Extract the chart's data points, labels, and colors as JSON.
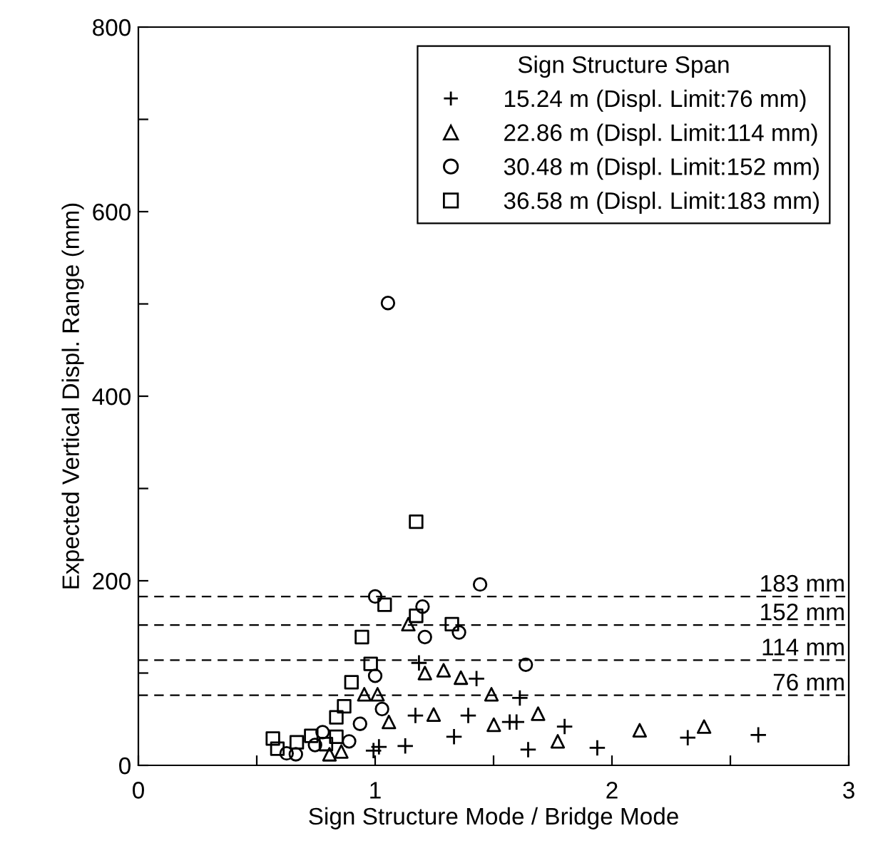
{
  "chart_data": {
    "type": "scatter",
    "xlabel": "Sign Structure Mode / Bridge Mode",
    "ylabel": "Expected Vertical Displ. Range (mm)",
    "legend_title": "Sign Structure Span",
    "legend": "top right",
    "grid": false,
    "xlim": [
      0,
      3
    ],
    "xticks": [
      0,
      {
        "value": 0.5,
        "label": null
      },
      1,
      {
        "value": 1.5,
        "label": null
      },
      2,
      {
        "value": 2.5,
        "label": null
      },
      3
    ],
    "ylim": [
      0,
      800
    ],
    "yticks": [
      0,
      {
        "value": 100,
        "label": null
      },
      200,
      {
        "value": 300,
        "label": null
      },
      400,
      {
        "value": 500,
        "label": null
      },
      600,
      {
        "value": 700,
        "label": null
      },
      800
    ],
    "series": [
      {
        "name": "15.24 m (Displ. Limit:76 mm)",
        "color": "#000000",
        "marker": "cross",
        "x": [
          1.185,
          1.428,
          1.17,
          1.393,
          1.333,
          1.127,
          1.016,
          0.993,
          1.611,
          1.568,
          1.597,
          1.8,
          1.646,
          1.938,
          2.32,
          2.618
        ],
        "values": [
          111,
          94,
          54,
          54,
          31,
          21,
          20,
          16,
          73,
          47,
          47,
          42,
          17,
          19,
          30,
          33
        ]
      },
      {
        "name": "22.86 m (Displ. Limit:114 mm)",
        "color": "#000000",
        "marker": "triangle",
        "x": [
          1.14,
          1.21,
          1.289,
          1.362,
          0.954,
          1.01,
          1.058,
          1.247,
          0.807,
          0.857,
          1.491,
          1.501,
          1.688,
          1.771,
          2.117,
          2.389
        ],
        "values": [
          153,
          100,
          103,
          95,
          77,
          77,
          47,
          55,
          12,
          15,
          77,
          44,
          56,
          26,
          38,
          42
        ]
      },
      {
        "name": "30.48 m (Displ. Limit:152 mm)",
        "color": "#000000",
        "marker": "circle",
        "x": [
          1.054,
          1.0,
          1.2,
          1.21,
          1.354,
          1.443,
          1.0,
          1.029,
          0.936,
          0.778,
          0.89,
          0.746,
          0.626,
          0.665,
          1.636
        ],
        "values": [
          501,
          183,
          172,
          139,
          144,
          196,
          97,
          61,
          45,
          36,
          26,
          22,
          13,
          12,
          109
        ]
      },
      {
        "name": "36.58 m (Displ. Limit:183 mm)",
        "color": "#000000",
        "marker": "square",
        "x": [
          1.173,
          1.04,
          0.944,
          0.981,
          0.9,
          0.869,
          0.836,
          1.324,
          1.173,
          0.568,
          0.587,
          0.669,
          0.73,
          0.836,
          0.792
        ],
        "values": [
          264,
          174,
          139,
          110,
          90,
          64,
          52,
          153,
          162,
          29,
          18,
          25,
          32,
          31,
          23
        ]
      }
    ],
    "ref_lines": [
      {
        "axis": "y",
        "value": 183,
        "label": "183 mm",
        "color": "#000000",
        "line_style": "dashed"
      },
      {
        "axis": "y",
        "value": 152,
        "label": "152 mm",
        "color": "#000000",
        "line_style": "dashed"
      },
      {
        "axis": "y",
        "value": 114,
        "label": "114 mm",
        "color": "#000000",
        "line_style": "dashed"
      },
      {
        "axis": "y",
        "value": 76,
        "label": "76 mm",
        "color": "#000000",
        "line_style": "dashed"
      }
    ]
  }
}
